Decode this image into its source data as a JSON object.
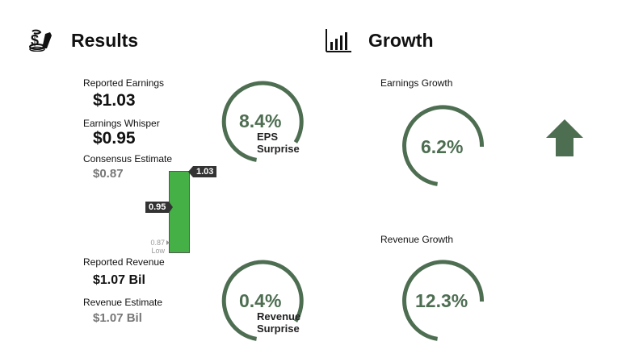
{
  "results": {
    "title": "Results",
    "icon": "money-bag-icon",
    "reported_earnings": {
      "label": "Reported Earnings",
      "value": "$1.03"
    },
    "earnings_whisper": {
      "label": "Earnings Whisper",
      "value": "$0.95"
    },
    "consensus_estimate": {
      "label": "Consensus Estimate",
      "value": "$0.87"
    },
    "bar": {
      "high_flag": "1.03",
      "mid_flag": "0.95",
      "low_value": "0.87",
      "low_label": "Low",
      "color": "#45b045"
    },
    "eps_gauge": {
      "percent": "8.4%",
      "line1": "EPS",
      "line2": "Surprise"
    },
    "reported_revenue": {
      "label": "Reported Revenue",
      "value": "$1.07 Bil"
    },
    "revenue_estimate": {
      "label": "Revenue Estimate",
      "value": "$1.07 Bil"
    },
    "revenue_gauge": {
      "percent": "0.4%",
      "line1": "Revenue",
      "line2": "Surprise"
    }
  },
  "growth": {
    "title": "Growth",
    "icon": "bar-chart-icon",
    "earnings_growth": {
      "label": "Earnings Growth",
      "percent": "6.2%"
    },
    "revenue_growth": {
      "label": "Revenue Growth",
      "percent": "12.3%"
    },
    "trend_icon": "up-arrow-icon"
  },
  "colors": {
    "accent": "#4e6e52",
    "bar_green": "#45b045",
    "flag_dark": "#333333"
  }
}
